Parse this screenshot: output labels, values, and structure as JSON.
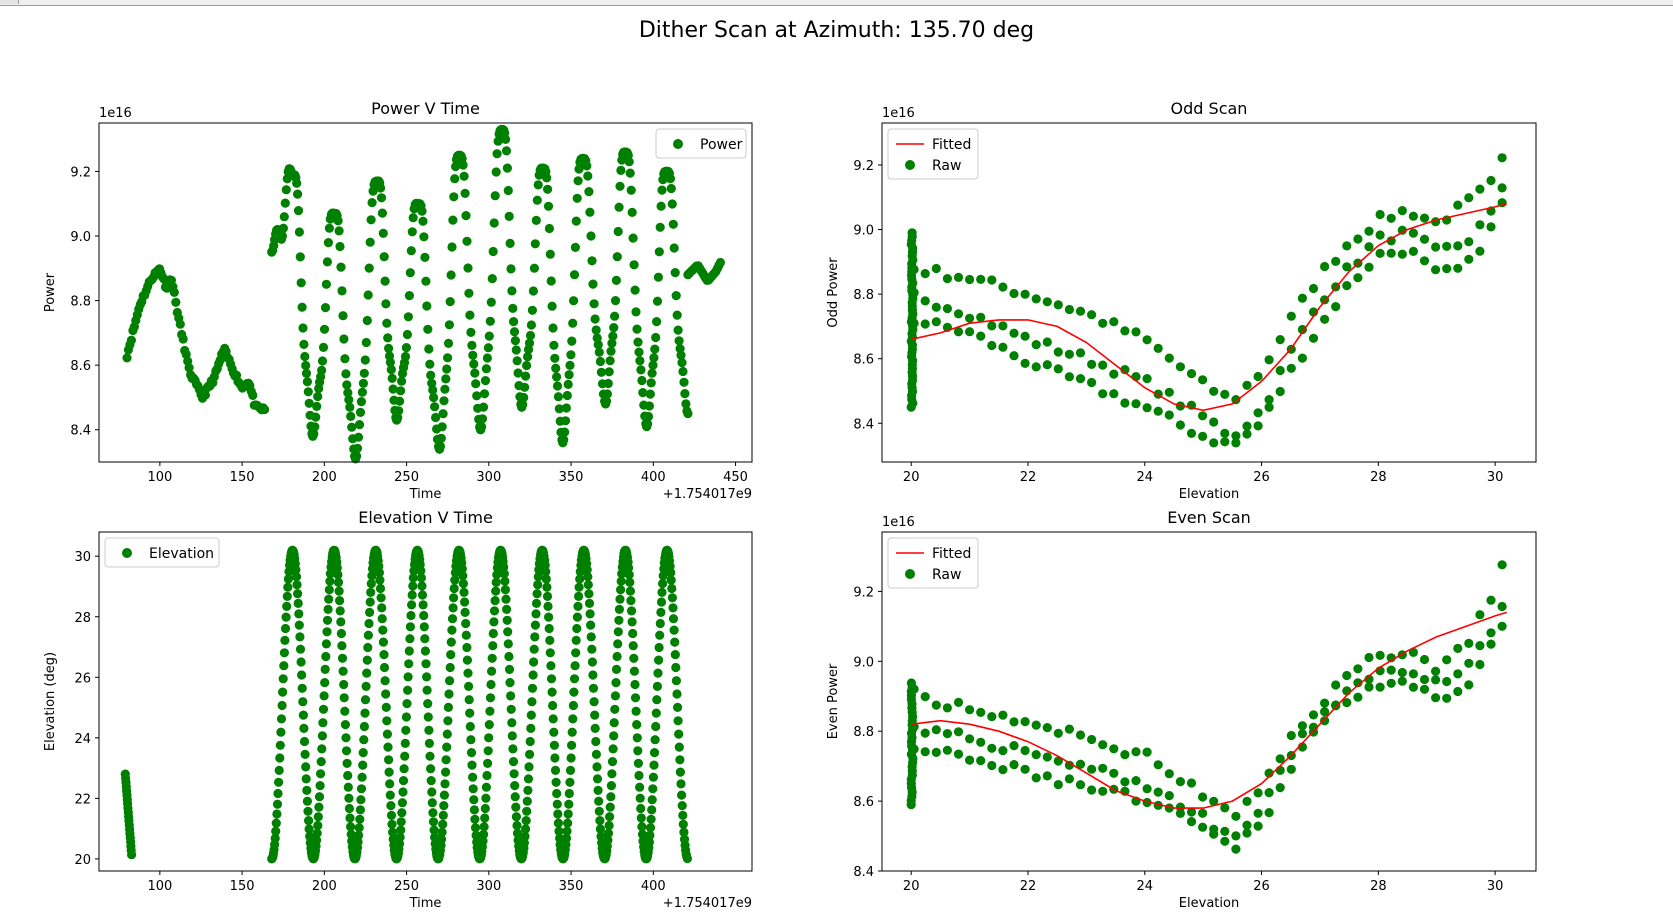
{
  "window": {
    "suptitle": "Dither Scan at Azimuth: 135.70 deg"
  },
  "colors": {
    "points": "#008000",
    "fit": "#ff0000"
  },
  "chart_data": [
    {
      "id": "power",
      "type": "scatter",
      "title": "Power V Time",
      "xlabel": "Time",
      "ylabel": "Power",
      "x_offset_label": "+1.754017e9",
      "y_scale_label": "1e16",
      "xlim": [
        63,
        460
      ],
      "ylim": [
        8.3,
        9.35
      ],
      "xticks": [
        100,
        150,
        200,
        250,
        300,
        350,
        400,
        450
      ],
      "yticks": [
        8.4,
        8.6,
        8.8,
        9.0,
        9.2
      ],
      "ytick_labels": [
        "8.4",
        "8.6",
        "8.8",
        "9.0",
        "9.2"
      ],
      "legend": {
        "loc": "upper right",
        "entries": [
          {
            "label": "Power",
            "kind": "marker"
          }
        ]
      },
      "scan": {
        "t0": 168,
        "t1": 421,
        "period": 25.3,
        "n_sweeps": 10
      },
      "peaks_t": [
        181,
        206,
        232,
        257,
        282,
        308,
        333,
        357,
        383,
        408
      ],
      "peaks_power": [
        9.19,
        9.07,
        9.17,
        9.1,
        9.25,
        9.33,
        9.21,
        9.24,
        9.26,
        9.2
      ],
      "troughs_t": [
        168,
        193,
        219,
        244,
        270,
        295,
        320,
        345,
        371,
        396,
        421
      ],
      "troughs_power": [
        8.95,
        8.38,
        8.31,
        8.43,
        8.34,
        8.4,
        8.47,
        8.36,
        8.48,
        8.41,
        8.45
      ],
      "pre_scan": [
        [
          80,
          8.63
        ],
        [
          88,
          8.79
        ],
        [
          95,
          8.87
        ],
        [
          100,
          8.9
        ],
        [
          104,
          8.84
        ],
        [
          107,
          8.87
        ],
        [
          112,
          8.73
        ],
        [
          118,
          8.58
        ],
        [
          126,
          8.5
        ],
        [
          133,
          8.56
        ],
        [
          139,
          8.65
        ],
        [
          145,
          8.58
        ],
        [
          150,
          8.53
        ],
        [
          154,
          8.55
        ],
        [
          158,
          8.47
        ],
        [
          164,
          8.46
        ]
      ],
      "post_scan": [
        [
          421,
          8.88
        ],
        [
          427,
          8.91
        ],
        [
          433,
          8.86
        ],
        [
          438,
          8.89
        ],
        [
          441,
          8.92
        ]
      ]
    },
    {
      "id": "odd",
      "type": "scatter",
      "title": "Odd Scan",
      "xlabel": "Elevation",
      "ylabel": "Odd Power",
      "y_scale_label": "1e16",
      "xlim": [
        19.5,
        30.7
      ],
      "ylim": [
        8.28,
        9.33
      ],
      "xticks": [
        20,
        22,
        24,
        26,
        28,
        30
      ],
      "yticks": [
        8.4,
        8.6,
        8.8,
        9.0,
        9.2
      ],
      "ytick_labels": [
        "8.4",
        "8.6",
        "8.8",
        "9.0",
        "9.2"
      ],
      "legend": {
        "loc": "upper left",
        "entries": [
          {
            "label": "Fitted",
            "kind": "line"
          },
          {
            "label": "Raw",
            "kind": "marker"
          }
        ]
      },
      "fitted": {
        "x": [
          20,
          20.5,
          21,
          21.5,
          22,
          22.5,
          23,
          23.5,
          24,
          24.5,
          25,
          25.5,
          26,
          26.5,
          27,
          27.5,
          28,
          28.5,
          29,
          29.5,
          30,
          30.2
        ],
        "y": [
          8.66,
          8.68,
          8.71,
          8.72,
          8.72,
          8.7,
          8.65,
          8.58,
          8.51,
          8.46,
          8.44,
          8.46,
          8.53,
          8.63,
          8.76,
          8.87,
          8.95,
          9.0,
          9.03,
          9.05,
          9.07,
          9.08
        ]
      },
      "bands": [
        {
          "x": [
            20,
            21,
            22,
            23,
            24,
            25,
            25.5,
            26,
            26.5,
            27,
            27.5,
            28,
            28.5,
            29,
            29.5,
            30,
            30.2
          ],
          "y": [
            8.88,
            8.85,
            8.8,
            8.74,
            8.66,
            8.52,
            8.47,
            8.56,
            8.72,
            8.86,
            8.96,
            9.03,
            9.06,
            9.02,
            9.08,
            9.15,
            9.25
          ]
        },
        {
          "x": [
            20,
            21,
            22,
            23,
            24,
            25,
            25.5,
            26,
            26.5,
            27,
            27.5,
            28,
            28.5,
            29,
            29.5,
            30,
            30.2
          ],
          "y": [
            8.8,
            8.74,
            8.66,
            8.6,
            8.53,
            8.42,
            8.36,
            8.44,
            8.62,
            8.78,
            8.88,
            8.97,
            8.99,
            8.93,
            8.96,
            9.06,
            9.18
          ]
        },
        {
          "x": [
            20,
            21,
            22,
            23,
            24,
            25,
            25.5,
            26,
            26.5,
            27,
            27.5,
            28,
            28.5,
            29,
            29.5,
            30,
            30.2
          ],
          "y": [
            8.72,
            8.68,
            8.59,
            8.52,
            8.45,
            8.36,
            8.33,
            8.4,
            8.56,
            8.7,
            8.83,
            8.92,
            8.94,
            8.86,
            8.88,
            9.02,
            9.12
          ]
        }
      ],
      "x20_spread": [
        8.45,
        9.0
      ]
    },
    {
      "id": "elevation",
      "type": "scatter",
      "title": "Elevation V Time",
      "xlabel": "Time",
      "ylabel": "Elevation (deg)",
      "x_offset_label": "+1.754017e9",
      "xlim": [
        63,
        460
      ],
      "ylim": [
        19.6,
        30.8
      ],
      "xticks": [
        100,
        150,
        200,
        250,
        300,
        350,
        400
      ],
      "yticks": [
        20,
        22,
        24,
        26,
        28,
        30
      ],
      "ytick_labels": [
        "20",
        "22",
        "24",
        "26",
        "28",
        "30"
      ],
      "legend": {
        "loc": "upper left",
        "entries": [
          {
            "label": "Elevation",
            "kind": "marker"
          }
        ]
      },
      "initial_segment": {
        "t": [
          79,
          83
        ],
        "elev": [
          22.8,
          20.0
        ]
      },
      "scan": {
        "t0": 168,
        "t1": 421,
        "period": 25.3,
        "el_min": 20.0,
        "el_max": 30.2
      }
    },
    {
      "id": "even",
      "type": "scatter",
      "title": "Even Scan",
      "xlabel": "Elevation",
      "ylabel": "Even Power",
      "y_scale_label": "1e16",
      "xlim": [
        19.5,
        30.7
      ],
      "ylim": [
        8.4,
        9.37
      ],
      "xticks": [
        20,
        22,
        24,
        26,
        28,
        30
      ],
      "yticks": [
        8.4,
        8.6,
        8.8,
        9.0,
        9.2
      ],
      "ytick_labels": [
        "8.4",
        "8.6",
        "8.8",
        "9.0",
        "9.2"
      ],
      "legend": {
        "loc": "upper left",
        "entries": [
          {
            "label": "Fitted",
            "kind": "line"
          },
          {
            "label": "Raw",
            "kind": "marker"
          }
        ]
      },
      "fitted": {
        "x": [
          20,
          20.5,
          21,
          21.5,
          22,
          22.5,
          23,
          23.5,
          24,
          24.5,
          25,
          25.5,
          26,
          26.5,
          27,
          27.5,
          28,
          28.5,
          29,
          29.5,
          30,
          30.2
        ],
        "y": [
          8.82,
          8.83,
          8.82,
          8.8,
          8.77,
          8.73,
          8.68,
          8.63,
          8.6,
          8.58,
          8.58,
          8.6,
          8.65,
          8.73,
          8.82,
          8.91,
          8.98,
          9.03,
          9.07,
          9.1,
          9.13,
          9.14
        ]
      },
      "bands": [
        {
          "x": [
            20,
            21,
            22,
            23,
            24,
            25,
            25.5,
            26,
            26.5,
            27,
            27.5,
            28,
            28.5,
            29,
            29.5,
            30,
            30.2
          ],
          "y": [
            8.91,
            8.86,
            8.82,
            8.78,
            8.73,
            8.62,
            8.55,
            8.63,
            8.78,
            8.88,
            8.96,
            9.02,
            9.03,
            8.98,
            9.05,
            9.2,
            9.31
          ]
        },
        {
          "x": [
            20,
            21,
            22,
            23,
            24,
            25,
            25.5,
            26,
            26.5,
            27,
            27.5,
            28,
            28.5,
            29,
            29.5,
            30,
            30.2
          ],
          "y": [
            8.8,
            8.78,
            8.74,
            8.7,
            8.65,
            8.55,
            8.49,
            8.58,
            8.73,
            8.85,
            8.92,
            8.97,
            8.98,
            8.93,
            8.97,
            9.1,
            9.2
          ]
        },
        {
          "x": [
            20,
            21,
            22,
            23,
            24,
            25,
            25.5,
            26,
            26.5,
            27,
            27.5,
            28,
            28.5,
            29,
            29.5,
            30,
            30.2
          ],
          "y": [
            8.75,
            8.72,
            8.68,
            8.64,
            8.6,
            8.52,
            8.46,
            8.54,
            8.7,
            8.82,
            8.9,
            8.94,
            8.94,
            8.88,
            8.91,
            9.06,
            9.12
          ]
        }
      ],
      "x20_spread": [
        8.59,
        8.94
      ]
    }
  ]
}
